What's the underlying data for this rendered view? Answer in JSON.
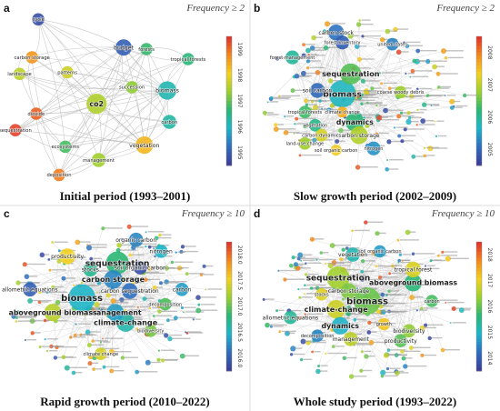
{
  "panels": [
    {
      "letter": "a",
      "frequency": "Frequency ≥ 2",
      "caption": "Initial period (1993–2001)",
      "colorbar": {
        "ticks": [
          "1999",
          "1998",
          "1997",
          "1996",
          "1995"
        ],
        "min": 1995,
        "max": 1999.3
      },
      "nodes": [
        {
          "label": "co2",
          "year": 1997.6,
          "freq": 9,
          "fx": 0.42,
          "fy": 0.55
        },
        {
          "label": "biomass",
          "year": 1996.4,
          "freq": 7,
          "fx": 0.76,
          "fy": 0.47
        },
        {
          "label": "vegetation",
          "year": 1998.3,
          "freq": 6,
          "fx": 0.65,
          "fy": 0.8
        },
        {
          "label": "budget",
          "year": 1995.4,
          "freq": 5,
          "fx": 0.55,
          "fy": 0.21
        },
        {
          "label": "carbon",
          "year": 1996.5,
          "freq": 3,
          "fx": 0.77,
          "fy": 0.66
        },
        {
          "label": "management",
          "year": 1997.5,
          "freq": 3,
          "fx": 0.43,
          "fy": 0.89
        },
        {
          "label": "succession",
          "year": 1997.4,
          "freq": 2,
          "fx": 0.59,
          "fy": 0.45
        },
        {
          "label": "tropical forests",
          "year": 1996.8,
          "freq": 2,
          "fx": 0.86,
          "fy": 0.28
        },
        {
          "label": "forests",
          "year": 1996.9,
          "freq": 2,
          "fx": 0.66,
          "fy": 0.22
        },
        {
          "label": "cycle",
          "year": 1995.2,
          "freq": 2,
          "fx": 0.14,
          "fy": 0.04
        },
        {
          "label": "carbon storage",
          "year": 1998.6,
          "freq": 2,
          "fx": 0.11,
          "fy": 0.27
        },
        {
          "label": "patterns",
          "year": 1997.8,
          "freq": 2,
          "fx": 0.28,
          "fy": 0.36
        },
        {
          "label": "landscape",
          "year": 1997.7,
          "freq": 2,
          "fx": 0.05,
          "fy": 0.37
        },
        {
          "label": "dioxide",
          "year": 1999.0,
          "freq": 2,
          "fx": 0.13,
          "fy": 0.61
        },
        {
          "label": "sequestration",
          "year": 1999.2,
          "freq": 2,
          "fx": 0.03,
          "fy": 0.71
        },
        {
          "label": "ecosystems",
          "year": 1997.0,
          "freq": 2,
          "fx": 0.27,
          "fy": 0.81
        },
        {
          "label": "deposition",
          "year": 1998.8,
          "freq": 2,
          "fx": 0.24,
          "fy": 0.98
        }
      ]
    },
    {
      "letter": "b",
      "frequency": "Frequency ≥ 2",
      "caption": "Slow growth period (2002–2009)",
      "colorbar": {
        "ticks": [
          "2008",
          "2007",
          "2006",
          "2005"
        ],
        "min": 2005,
        "max": 2008.3
      },
      "nodes": [
        {
          "label": "biomass",
          "year": 2006.0,
          "freq": 22,
          "fx": 0.4,
          "fy": 0.49
        },
        {
          "label": "sequestration",
          "year": 2006.6,
          "freq": 12,
          "fx": 0.44,
          "fy": 0.37
        },
        {
          "label": "dynamics",
          "year": 2006.4,
          "freq": 9,
          "fx": 0.46,
          "fy": 0.66
        },
        {
          "label": "carbon storage",
          "year": 2007.0,
          "freq": 8,
          "fx": 0.48,
          "fy": 0.74
        },
        {
          "label": "carbon stock",
          "year": 2005.5,
          "freq": 6,
          "fx": 0.37,
          "fy": 0.12
        },
        {
          "label": "soil carbon",
          "year": 2005.4,
          "freq": 5,
          "fx": 0.28,
          "fy": 0.47
        },
        {
          "label": "forest inventory",
          "year": 2005.3,
          "freq": 4,
          "fx": 0.4,
          "fy": 0.18
        },
        {
          "label": "forest management",
          "year": 2006.2,
          "freq": 4,
          "fx": 0.16,
          "fy": 0.27
        },
        {
          "label": "united states",
          "year": 2005.6,
          "freq": 3,
          "fx": 0.64,
          "fy": 0.19
        },
        {
          "label": "coarse woody debris",
          "year": 2006.9,
          "freq": 3,
          "fx": 0.68,
          "fy": 0.48
        },
        {
          "label": "nitrogen",
          "year": 2005.7,
          "freq": 4,
          "fx": 0.55,
          "fy": 0.82
        },
        {
          "label": "tropical forests",
          "year": 2006.5,
          "freq": 3,
          "fx": 0.22,
          "fy": 0.6
        },
        {
          "label": "land-use change",
          "year": 2006.9,
          "freq": 3,
          "fx": 0.22,
          "fy": 0.79
        },
        {
          "label": "vegetation",
          "year": 2006.3,
          "freq": 3,
          "fx": 0.27,
          "fy": 0.68
        },
        {
          "label": "carbon dynamics",
          "year": 2007.2,
          "freq": 3,
          "fx": 0.3,
          "fy": 0.74
        },
        {
          "label": "climate change",
          "year": 2007.6,
          "freq": 2,
          "fx": 0.4,
          "fy": 0.6
        },
        {
          "label": "soil organic carbon",
          "year": 2007.4,
          "freq": 2,
          "fx": 0.37,
          "fy": 0.83
        }
      ]
    },
    {
      "letter": "c",
      "frequency": "Frequency ≥ 10",
      "caption": "Rapid growth period (2010–2022)",
      "colorbar": {
        "ticks": [
          "2018.0",
          "2017.5",
          "2017.0",
          "2016.5",
          "2016.0"
        ],
        "min": 2016,
        "max": 2018.1
      },
      "nodes": [
        {
          "label": "biomass",
          "year": 2016.6,
          "freq": 30,
          "fx": 0.35,
          "fy": 0.48
        },
        {
          "label": "sequestration",
          "year": 2016.9,
          "freq": 20,
          "fx": 0.52,
          "fy": 0.27
        },
        {
          "label": "carbon storage",
          "year": 2016.4,
          "freq": 12,
          "fx": 0.5,
          "fy": 0.37
        },
        {
          "label": "climate-change",
          "year": 2016.7,
          "freq": 12,
          "fx": 0.56,
          "fy": 0.63
        },
        {
          "label": "management",
          "year": 2016.5,
          "freq": 10,
          "fx": 0.51,
          "fy": 0.57
        },
        {
          "label": "aboveground biomass",
          "year": 2017.3,
          "freq": 10,
          "fx": 0.21,
          "fy": 0.57
        },
        {
          "label": "carbon sequestration",
          "year": 2016.3,
          "freq": 8,
          "fx": 0.58,
          "fy": 0.44
        },
        {
          "label": "productivity",
          "year": 2017.5,
          "freq": 8,
          "fx": 0.28,
          "fy": 0.23
        },
        {
          "label": "allometric equations",
          "year": 2016.2,
          "freq": 6,
          "fx": 0.1,
          "fy": 0.43
        },
        {
          "label": "stocks",
          "year": 2016.8,
          "freq": 6,
          "fx": 0.39,
          "fy": 0.31
        },
        {
          "label": "organic carbon",
          "year": 2016.4,
          "freq": 6,
          "fx": 0.61,
          "fy": 0.13
        },
        {
          "label": "nitrogen",
          "year": 2016.6,
          "freq": 5,
          "fx": 0.73,
          "fy": 0.2
        },
        {
          "label": "soil organic carbon",
          "year": 2016.1,
          "freq": 5,
          "fx": 0.63,
          "fy": 0.3
        },
        {
          "label": "decomposition",
          "year": 2017.0,
          "freq": 4,
          "fx": 0.75,
          "fy": 0.52
        },
        {
          "label": "biodiversity",
          "year": 2017.1,
          "freq": 4,
          "fx": 0.68,
          "fy": 0.68
        },
        {
          "label": "carbon",
          "year": 2016.5,
          "freq": 5,
          "fx": 0.83,
          "fy": 0.43
        },
        {
          "label": "climate change",
          "year": 2017.4,
          "freq": 4,
          "fx": 0.44,
          "fy": 0.82
        }
      ]
    },
    {
      "letter": "d",
      "frequency": "Frequency ≥ 10",
      "caption": "Whole study period (1993–2022)",
      "colorbar": {
        "ticks": [
          "2018",
          "2017",
          "2016",
          "2015",
          "2014"
        ],
        "min": 2014,
        "max": 2018.3
      },
      "nodes": [
        {
          "label": "biomass",
          "year": 2016.2,
          "freq": 30,
          "fx": 0.52,
          "fy": 0.5
        },
        {
          "label": "sequestration",
          "year": 2016.5,
          "freq": 20,
          "fx": 0.38,
          "fy": 0.36
        },
        {
          "label": "climate-change",
          "year": 2016.8,
          "freq": 12,
          "fx": 0.37,
          "fy": 0.55
        },
        {
          "label": "dynamics",
          "year": 2015.2,
          "freq": 10,
          "fx": 0.39,
          "fy": 0.65
        },
        {
          "label": "aboveground biomass",
          "year": 2015.8,
          "freq": 10,
          "fx": 0.74,
          "fy": 0.39
        },
        {
          "label": "tropical forest",
          "year": 2016.9,
          "freq": 8,
          "fx": 0.74,
          "fy": 0.31
        },
        {
          "label": "carbon storage",
          "year": 2016.3,
          "freq": 8,
          "fx": 0.43,
          "fy": 0.44
        },
        {
          "label": "management",
          "year": 2016.7,
          "freq": 6,
          "fx": 0.44,
          "fy": 0.73
        },
        {
          "label": "vegetation",
          "year": 2015.4,
          "freq": 6,
          "fx": 0.45,
          "fy": 0.22
        },
        {
          "label": "productivity",
          "year": 2016.1,
          "freq": 5,
          "fx": 0.68,
          "fy": 0.74
        },
        {
          "label": "biodiversity",
          "year": 2016.4,
          "freq": 5,
          "fx": 0.72,
          "fy": 0.68
        },
        {
          "label": "allometric equations",
          "year": 2015.6,
          "freq": 5,
          "fx": 0.15,
          "fy": 0.6
        },
        {
          "label": "growth",
          "year": 2017.2,
          "freq": 4,
          "fx": 0.6,
          "fy": 0.64
        },
        {
          "label": "stocks",
          "year": 2016.9,
          "freq": 4,
          "fx": 0.3,
          "fy": 0.46
        },
        {
          "label": "soil organic carbon",
          "year": 2015.0,
          "freq": 4,
          "fx": 0.58,
          "fy": 0.2
        },
        {
          "label": "decomposition",
          "year": 2014.8,
          "freq": 4,
          "fx": 0.28,
          "fy": 0.71
        },
        {
          "label": "carbon",
          "year": 2016.0,
          "freq": 4,
          "fx": 0.83,
          "fy": 0.5
        }
      ]
    }
  ]
}
